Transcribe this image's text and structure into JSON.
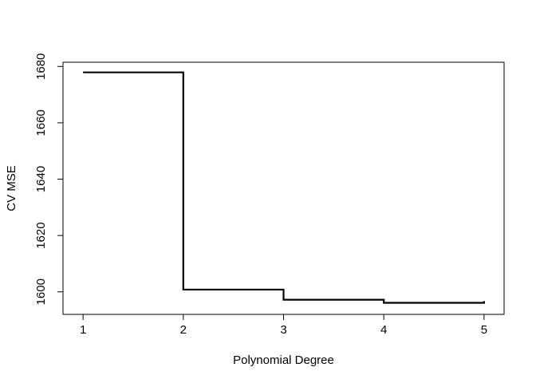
{
  "chart_data": {
    "type": "line",
    "style": "step",
    "title": "",
    "xlabel": "Polynomial Degree",
    "ylabel": "CV MSE",
    "x": [
      1,
      2,
      3,
      4,
      5
    ],
    "series": [
      {
        "values": [
          1677.9,
          1600.8,
          1597.2,
          1596.1,
          1596.7
        ]
      }
    ],
    "xlim": [
      0.8,
      5.2
    ],
    "ylim": [
      1592,
      1681.5
    ],
    "xticks": [
      "1",
      "2",
      "3",
      "4",
      "5"
    ],
    "yticks": [
      "1600",
      "1620",
      "1640",
      "1660",
      "1680"
    ],
    "grid": false,
    "line_color": "#000000"
  }
}
